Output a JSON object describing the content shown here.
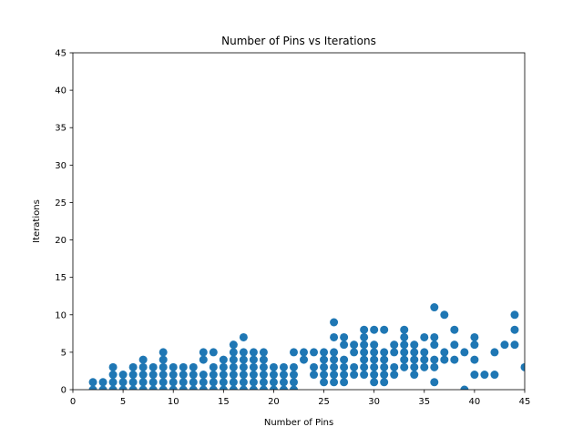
{
  "chart_data": {
    "type": "scatter",
    "title": "Number of Pins vs Iterations",
    "xlabel": "Number of Pins",
    "ylabel": "Iterations",
    "xlim": [
      0,
      45
    ],
    "ylim": [
      0,
      45
    ],
    "xticks": [
      0,
      5,
      10,
      15,
      20,
      25,
      30,
      35,
      40,
      45
    ],
    "yticks": [
      0,
      5,
      10,
      15,
      20,
      25,
      30,
      35,
      40,
      45
    ],
    "grid": false,
    "marker_color": "#1f77b4",
    "series": [
      {
        "points": [
          [
            2,
            0
          ],
          [
            2,
            1
          ],
          [
            3,
            0
          ],
          [
            3,
            1
          ],
          [
            4,
            0
          ],
          [
            4,
            1
          ],
          [
            4,
            2
          ],
          [
            4,
            3
          ],
          [
            5,
            0
          ],
          [
            5,
            1
          ],
          [
            5,
            2
          ],
          [
            6,
            0
          ],
          [
            6,
            1
          ],
          [
            6,
            2
          ],
          [
            6,
            3
          ],
          [
            7,
            0
          ],
          [
            7,
            1
          ],
          [
            7,
            2
          ],
          [
            7,
            3
          ],
          [
            7,
            4
          ],
          [
            8,
            0
          ],
          [
            8,
            1
          ],
          [
            8,
            2
          ],
          [
            8,
            3
          ],
          [
            9,
            0
          ],
          [
            9,
            1
          ],
          [
            9,
            2
          ],
          [
            9,
            3
          ],
          [
            9,
            4
          ],
          [
            9,
            5
          ],
          [
            10,
            0
          ],
          [
            10,
            1
          ],
          [
            10,
            2
          ],
          [
            10,
            3
          ],
          [
            11,
            0
          ],
          [
            11,
            1
          ],
          [
            11,
            2
          ],
          [
            11,
            3
          ],
          [
            12,
            0
          ],
          [
            12,
            1
          ],
          [
            12,
            2
          ],
          [
            12,
            3
          ],
          [
            13,
            0
          ],
          [
            13,
            1
          ],
          [
            13,
            2
          ],
          [
            13,
            4
          ],
          [
            13,
            5
          ],
          [
            14,
            0
          ],
          [
            14,
            1
          ],
          [
            14,
            2
          ],
          [
            14,
            3
          ],
          [
            14,
            5
          ],
          [
            15,
            0
          ],
          [
            15,
            1
          ],
          [
            15,
            2
          ],
          [
            15,
            3
          ],
          [
            15,
            4
          ],
          [
            16,
            0
          ],
          [
            16,
            1
          ],
          [
            16,
            2
          ],
          [
            16,
            3
          ],
          [
            16,
            4
          ],
          [
            16,
            5
          ],
          [
            16,
            6
          ],
          [
            17,
            0
          ],
          [
            17,
            1
          ],
          [
            17,
            2
          ],
          [
            17,
            3
          ],
          [
            17,
            4
          ],
          [
            17,
            5
          ],
          [
            17,
            7
          ],
          [
            18,
            0
          ],
          [
            18,
            1
          ],
          [
            18,
            2
          ],
          [
            18,
            3
          ],
          [
            18,
            4
          ],
          [
            18,
            5
          ],
          [
            19,
            0
          ],
          [
            19,
            1
          ],
          [
            19,
            2
          ],
          [
            19,
            3
          ],
          [
            19,
            4
          ],
          [
            19,
            5
          ],
          [
            20,
            0
          ],
          [
            20,
            1
          ],
          [
            20,
            2
          ],
          [
            20,
            3
          ],
          [
            21,
            0
          ],
          [
            21,
            1
          ],
          [
            21,
            2
          ],
          [
            21,
            3
          ],
          [
            22,
            0
          ],
          [
            22,
            1
          ],
          [
            22,
            2
          ],
          [
            22,
            3
          ],
          [
            22,
            5
          ],
          [
            23,
            4
          ],
          [
            23,
            5
          ],
          [
            24,
            2
          ],
          [
            24,
            3
          ],
          [
            24,
            5
          ],
          [
            25,
            1
          ],
          [
            25,
            2
          ],
          [
            25,
            3
          ],
          [
            25,
            4
          ],
          [
            25,
            5
          ],
          [
            26,
            1
          ],
          [
            26,
            2
          ],
          [
            26,
            3
          ],
          [
            26,
            4
          ],
          [
            26,
            5
          ],
          [
            26,
            7
          ],
          [
            26,
            9
          ],
          [
            27,
            1
          ],
          [
            27,
            2
          ],
          [
            27,
            3
          ],
          [
            27,
            4
          ],
          [
            27,
            6
          ],
          [
            27,
            7
          ],
          [
            28,
            2
          ],
          [
            28,
            3
          ],
          [
            28,
            5
          ],
          [
            28,
            6
          ],
          [
            29,
            2
          ],
          [
            29,
            3
          ],
          [
            29,
            4
          ],
          [
            29,
            5
          ],
          [
            29,
            6
          ],
          [
            29,
            7
          ],
          [
            29,
            8
          ],
          [
            30,
            1
          ],
          [
            30,
            2
          ],
          [
            30,
            3
          ],
          [
            30,
            4
          ],
          [
            30,
            5
          ],
          [
            30,
            6
          ],
          [
            30,
            8
          ],
          [
            31,
            1
          ],
          [
            31,
            2
          ],
          [
            31,
            3
          ],
          [
            31,
            4
          ],
          [
            31,
            5
          ],
          [
            31,
            8
          ],
          [
            32,
            2
          ],
          [
            32,
            3
          ],
          [
            32,
            5
          ],
          [
            32,
            6
          ],
          [
            33,
            3
          ],
          [
            33,
            4
          ],
          [
            33,
            5
          ],
          [
            33,
            6
          ],
          [
            33,
            7
          ],
          [
            33,
            8
          ],
          [
            34,
            2
          ],
          [
            34,
            3
          ],
          [
            34,
            4
          ],
          [
            34,
            5
          ],
          [
            34,
            6
          ],
          [
            35,
            3
          ],
          [
            35,
            4
          ],
          [
            35,
            5
          ],
          [
            35,
            7
          ],
          [
            36,
            1
          ],
          [
            36,
            3
          ],
          [
            36,
            4
          ],
          [
            36,
            6
          ],
          [
            36,
            7
          ],
          [
            36,
            11
          ],
          [
            37,
            4
          ],
          [
            37,
            5
          ],
          [
            37,
            10
          ],
          [
            38,
            4
          ],
          [
            38,
            6
          ],
          [
            38,
            8
          ],
          [
            39,
            0
          ],
          [
            39,
            5
          ],
          [
            40,
            2
          ],
          [
            40,
            4
          ],
          [
            40,
            6
          ],
          [
            40,
            7
          ],
          [
            41,
            2
          ],
          [
            42,
            2
          ],
          [
            42,
            5
          ],
          [
            43,
            6
          ],
          [
            44,
            6
          ],
          [
            44,
            8
          ],
          [
            44,
            10
          ],
          [
            45,
            3
          ]
        ]
      }
    ]
  }
}
